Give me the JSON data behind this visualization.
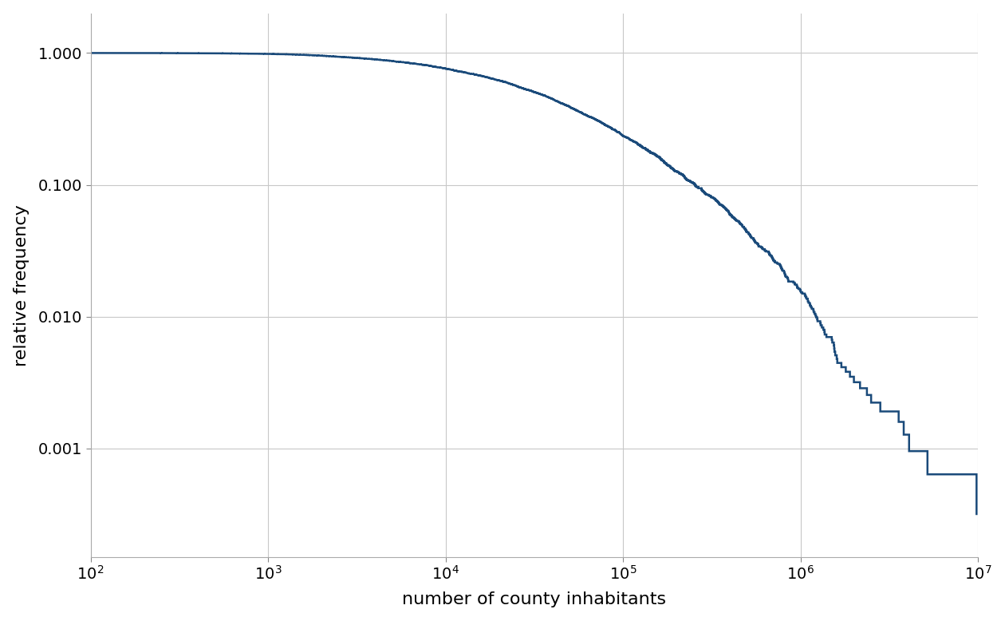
{
  "line_color": "#1a4a7a",
  "line_width": 1.8,
  "xlabel": "number of county inhabitants",
  "ylabel": "relative frequency",
  "xlim": [
    100,
    10000000
  ],
  "ylim_low": 0.00015,
  "ylim_high": 2.0,
  "background_color": "#ffffff",
  "grid_color": "#c8c8c8",
  "xlabel_fontsize": 16,
  "ylabel_fontsize": 16,
  "tick_fontsize": 14
}
